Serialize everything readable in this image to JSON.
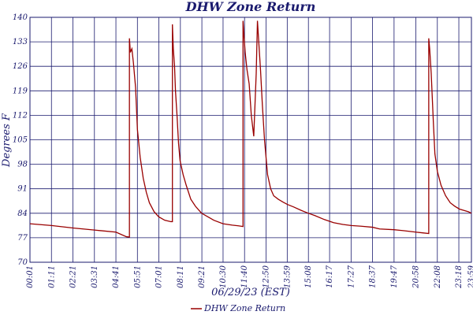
{
  "chart_data": {
    "type": "line",
    "title": "DHW Zone Return",
    "xlabel": "06/29/23 (EST)",
    "ylabel": "Degrees F",
    "ylim": [
      70,
      140
    ],
    "yticks": [
      70,
      77,
      84,
      91,
      98,
      105,
      112,
      119,
      126,
      133,
      140
    ],
    "xticks": [
      "00:01",
      "01:11",
      "02:21",
      "03:31",
      "04:41",
      "05:51",
      "07:01",
      "08:11",
      "09:21",
      "10:30",
      "11:40",
      "12:50",
      "13:59",
      "15:08",
      "16:17",
      "17:27",
      "18:37",
      "19:47",
      "20:58",
      "22:08",
      "23:18"
    ],
    "xticks_end_extra": "23:59",
    "legend": {
      "position": "bottom",
      "label": "DHW Zone Return"
    },
    "grid": true,
    "colors": {
      "line": "#990000",
      "grid": "#1a1a6e",
      "text": "#1a1a6e",
      "frame": "#1a1a6e"
    },
    "series": [
      {
        "name": "DHW Zone Return",
        "x": [
          "00:01",
          "01:11",
          "02:21",
          "03:31",
          "04:41",
          "05:15",
          "05:25",
          "05:25",
          "05:28",
          "05:33",
          "05:38",
          "05:45",
          "05:51",
          "06:00",
          "06:10",
          "06:20",
          "06:30",
          "06:45",
          "07:00",
          "07:20",
          "07:40",
          "07:45",
          "07:45",
          "07:48",
          "07:52",
          "07:55",
          "08:00",
          "08:05",
          "08:10",
          "08:20",
          "08:30",
          "08:45",
          "09:00",
          "09:20",
          "09:40",
          "10:00",
          "10:30",
          "11:00",
          "11:20",
          "11:35",
          "11:35",
          "11:38",
          "11:42",
          "11:48",
          "11:55",
          "12:02",
          "12:10",
          "12:14",
          "12:18",
          "12:22",
          "12:27",
          "12:32",
          "12:38",
          "12:45",
          "12:55",
          "13:05",
          "13:15",
          "13:30",
          "13:45",
          "14:00",
          "14:20",
          "14:45",
          "15:08",
          "15:30",
          "16:00",
          "16:30",
          "17:00",
          "17:27",
          "18:00",
          "18:37",
          "19:00",
          "19:47",
          "20:20",
          "20:58",
          "21:20",
          "21:40",
          "21:40",
          "21:43",
          "21:48",
          "21:55",
          "22:00",
          "22:08",
          "22:20",
          "22:35",
          "22:50",
          "23:05",
          "23:20",
          "23:35",
          "23:50",
          "23:59"
        ],
        "y": [
          81,
          80.5,
          79.8,
          79.2,
          78.6,
          77.3,
          77.2,
          134,
          130,
          131,
          127,
          120,
          108,
          100,
          94,
          90,
          87,
          84.5,
          83,
          82,
          81.6,
          81.6,
          138,
          131,
          126,
          119,
          112,
          104,
          99,
          95,
          92,
          88,
          86,
          84,
          83,
          82,
          81,
          80.6,
          80.4,
          80.2,
          139,
          135,
          130,
          125,
          121,
          112,
          106,
          115,
          124,
          139,
          132,
          125,
          115,
          105,
          95,
          91,
          89,
          88,
          87.2,
          86.5,
          85.8,
          84.8,
          84,
          83.3,
          82.2,
          81.3,
          80.8,
          80.5,
          80.3,
          80,
          79.5,
          79.3,
          79,
          78.6,
          78.4,
          78.2,
          134,
          131,
          124,
          110,
          101,
          96,
          92,
          89,
          87,
          86,
          85.2,
          84.8,
          84.4,
          84
        ]
      }
    ]
  }
}
